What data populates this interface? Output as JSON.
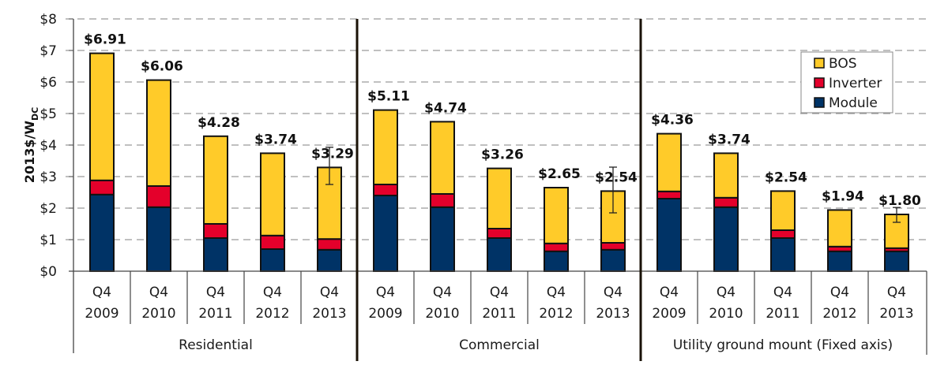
{
  "chart_data": {
    "type": "bar",
    "stacked": true,
    "title": "",
    "xlabel": "",
    "ylabel": "2013$/W",
    "ylabel_subscript": "DC",
    "ylim": [
      0,
      8
    ],
    "yticks": [
      0,
      1,
      2,
      3,
      4,
      5,
      6,
      7,
      8
    ],
    "ytick_labels": [
      "$0",
      "$1",
      "$2",
      "$3",
      "$4",
      "$5",
      "$6",
      "$7",
      "$8"
    ],
    "grid": true,
    "legend_position": "top-right",
    "colors": {
      "BOS": "#FFCB29",
      "Inverter": "#E4002B",
      "Module": "#003366"
    },
    "legend": [
      "BOS",
      "Inverter",
      "Module"
    ],
    "groups": [
      {
        "name": "Residential",
        "categories": [
          {
            "q": "Q4",
            "year": "2009",
            "module": 2.43,
            "inverter": 0.45,
            "bos": 4.03,
            "total_label": "$6.91",
            "total": 6.91
          },
          {
            "q": "Q4",
            "year": "2010",
            "module": 2.03,
            "inverter": 0.67,
            "bos": 3.36,
            "total_label": "$6.06",
            "total": 6.06
          },
          {
            "q": "Q4",
            "year": "2011",
            "module": 1.05,
            "inverter": 0.45,
            "bos": 2.78,
            "total_label": "$4.28",
            "total": 4.28
          },
          {
            "q": "Q4",
            "year": "2012",
            "module": 0.7,
            "inverter": 0.43,
            "bos": 2.61,
            "total_label": "$3.74",
            "total": 3.74
          },
          {
            "q": "Q4",
            "year": "2013",
            "module": 0.68,
            "inverter": 0.34,
            "bos": 2.27,
            "total_label": "$3.29",
            "total": 3.29,
            "error": [
              2.75,
              3.93
            ]
          }
        ]
      },
      {
        "name": "Commercial",
        "categories": [
          {
            "q": "Q4",
            "year": "2009",
            "module": 2.4,
            "inverter": 0.35,
            "bos": 2.36,
            "total_label": "$5.11",
            "total": 5.11
          },
          {
            "q": "Q4",
            "year": "2010",
            "module": 2.03,
            "inverter": 0.42,
            "bos": 2.29,
            "total_label": "$4.74",
            "total": 4.74
          },
          {
            "q": "Q4",
            "year": "2011",
            "module": 1.05,
            "inverter": 0.3,
            "bos": 1.91,
            "total_label": "$3.26",
            "total": 3.26
          },
          {
            "q": "Q4",
            "year": "2012",
            "module": 0.63,
            "inverter": 0.25,
            "bos": 1.77,
            "total_label": "$2.65",
            "total": 2.65
          },
          {
            "q": "Q4",
            "year": "2013",
            "module": 0.68,
            "inverter": 0.22,
            "bos": 1.64,
            "total_label": "$2.54",
            "total": 2.54,
            "error": [
              1.85,
              3.3
            ]
          }
        ]
      },
      {
        "name": "Utility ground mount (Fixed axis)",
        "categories": [
          {
            "q": "Q4",
            "year": "2009",
            "module": 2.3,
            "inverter": 0.23,
            "bos": 1.83,
            "total_label": "$4.36",
            "total": 4.36
          },
          {
            "q": "Q4",
            "year": "2010",
            "module": 2.03,
            "inverter": 0.3,
            "bos": 1.41,
            "total_label": "$3.74",
            "total": 3.74
          },
          {
            "q": "Q4",
            "year": "2011",
            "module": 1.05,
            "inverter": 0.25,
            "bos": 1.24,
            "total_label": "$2.54",
            "total": 2.54
          },
          {
            "q": "Q4",
            "year": "2012",
            "module": 0.63,
            "inverter": 0.15,
            "bos": 1.16,
            "total_label": "$1.94",
            "total": 1.94
          },
          {
            "q": "Q4",
            "year": "2013",
            "module": 0.63,
            "inverter": 0.1,
            "bos": 1.07,
            "total_label": "$1.80",
            "total": 1.8,
            "error": [
              1.55,
              2.02
            ]
          }
        ]
      }
    ]
  }
}
